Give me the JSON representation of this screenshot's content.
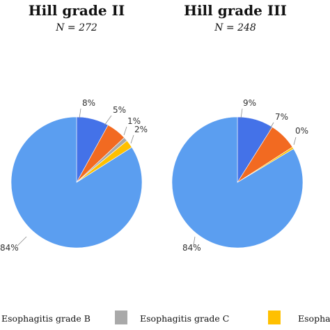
{
  "chart_data": [
    {
      "type": "pie",
      "title": "Hill grade II",
      "subtitle": "N = 272",
      "slices": [
        {
          "value": 8,
          "label": "8%",
          "color": "#4472E8"
        },
        {
          "value": 5,
          "label": "5%",
          "color": "#F26A21"
        },
        {
          "value": 1,
          "label": "1%",
          "color": "#A9A9A9"
        },
        {
          "value": 2,
          "label": "2%",
          "color": "#FFC000"
        },
        {
          "value": 84,
          "label": "84%",
          "color": "#5B9EF0"
        }
      ]
    },
    {
      "type": "pie",
      "title": "Hill grade III",
      "subtitle": "N = 248",
      "slices": [
        {
          "value": 9,
          "label": "9%",
          "color": "#4472E8"
        },
        {
          "value": 7,
          "label": "7%",
          "color": "#F26A21"
        },
        {
          "value": 0.5,
          "label": "0%",
          "color": "#FFC000"
        },
        {
          "value": 84,
          "label": "84%",
          "color": "#5B9EF0"
        }
      ]
    }
  ],
  "legend": [
    {
      "label": "Esophagitis grade B",
      "color": "#4472E8"
    },
    {
      "label": "Esophagitis grade C",
      "color": "#A9A9A9"
    },
    {
      "label": "Esophagitis",
      "color": "#FFC000"
    }
  ]
}
